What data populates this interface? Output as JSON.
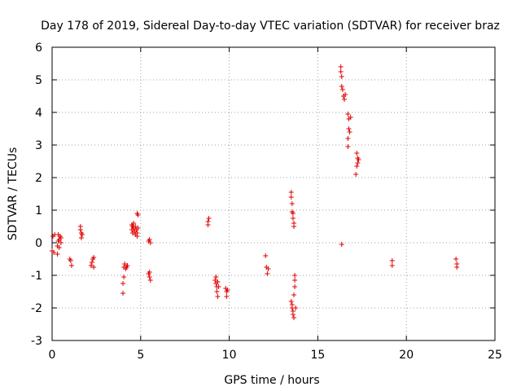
{
  "chart_data": {
    "type": "scatter",
    "title": "Day 178 of 2019, Sidereal Day-to-day VTEC variation (SDTVAR) for receiver braz",
    "xlabel": "GPS time / hours",
    "ylabel": "SDTVAR / TECUs",
    "xlim": [
      0,
      25
    ],
    "ylim": [
      -3,
      6
    ],
    "xticks": [
      "0",
      "5",
      "10",
      "15",
      "20",
      "25"
    ],
    "yticks": [
      "-3",
      "-2",
      "-1",
      "0",
      "1",
      "2",
      "3",
      "4",
      "5",
      "6"
    ],
    "grid": true,
    "marker": "+",
    "color": "#e00000",
    "series": [
      {
        "name": "braz",
        "points": [
          [
            0.0,
            -0.25
          ],
          [
            0.05,
            0.2
          ],
          [
            0.1,
            -0.3
          ],
          [
            0.15,
            0.25
          ],
          [
            0.3,
            -0.35
          ],
          [
            0.3,
            -0.1
          ],
          [
            0.35,
            0.05
          ],
          [
            0.35,
            0.25
          ],
          [
            0.4,
            0.1
          ],
          [
            0.4,
            -0.15
          ],
          [
            0.45,
            0.2
          ],
          [
            0.5,
            0.15
          ],
          [
            0.5,
            0.0
          ],
          [
            1.0,
            -0.5
          ],
          [
            1.05,
            -0.55
          ],
          [
            1.1,
            -0.7
          ],
          [
            1.6,
            0.5
          ],
          [
            1.6,
            0.4
          ],
          [
            1.65,
            0.3
          ],
          [
            1.65,
            0.15
          ],
          [
            1.7,
            0.25
          ],
          [
            2.2,
            -0.7
          ],
          [
            2.25,
            -0.6
          ],
          [
            2.3,
            -0.5
          ],
          [
            2.35,
            -0.45
          ],
          [
            2.35,
            -0.75
          ],
          [
            4.0,
            -1.55
          ],
          [
            4.0,
            -1.25
          ],
          [
            4.05,
            -1.05
          ],
          [
            4.05,
            -0.75
          ],
          [
            4.1,
            -0.65
          ],
          [
            4.15,
            -0.8
          ],
          [
            4.2,
            -0.75
          ],
          [
            4.25,
            -0.7
          ],
          [
            4.5,
            0.55
          ],
          [
            4.5,
            0.4
          ],
          [
            4.55,
            0.5
          ],
          [
            4.55,
            0.3
          ],
          [
            4.6,
            0.45
          ],
          [
            4.6,
            0.6
          ],
          [
            4.65,
            0.35
          ],
          [
            4.7,
            0.5
          ],
          [
            4.7,
            0.25
          ],
          [
            4.75,
            0.4
          ],
          [
            4.8,
            0.3
          ],
          [
            4.8,
            0.2
          ],
          [
            4.8,
            0.9
          ],
          [
            4.85,
            0.85
          ],
          [
            4.85,
            0.45
          ],
          [
            5.45,
            0.05
          ],
          [
            5.5,
            0.1
          ],
          [
            5.55,
            0.0
          ],
          [
            5.45,
            -0.95
          ],
          [
            5.5,
            -1.05
          ],
          [
            5.5,
            -0.9
          ],
          [
            5.55,
            -1.15
          ],
          [
            8.8,
            0.55
          ],
          [
            8.8,
            0.65
          ],
          [
            8.85,
            0.75
          ],
          [
            9.2,
            -1.15
          ],
          [
            9.25,
            -1.05
          ],
          [
            9.25,
            -1.25
          ],
          [
            9.3,
            -1.35
          ],
          [
            9.3,
            -1.5
          ],
          [
            9.35,
            -1.2
          ],
          [
            9.35,
            -1.65
          ],
          [
            9.4,
            -1.35
          ],
          [
            9.8,
            -1.4
          ],
          [
            9.85,
            -1.5
          ],
          [
            9.85,
            -1.65
          ],
          [
            9.9,
            -1.45
          ],
          [
            12.05,
            -0.4
          ],
          [
            12.1,
            -0.75
          ],
          [
            12.15,
            -0.95
          ],
          [
            12.2,
            -0.8
          ],
          [
            13.5,
            1.55
          ],
          [
            13.5,
            1.4
          ],
          [
            13.55,
            1.2
          ],
          [
            13.55,
            0.95
          ],
          [
            13.6,
            0.9
          ],
          [
            13.6,
            0.75
          ],
          [
            13.65,
            0.6
          ],
          [
            13.65,
            0.5
          ],
          [
            13.5,
            -1.8
          ],
          [
            13.55,
            -1.9
          ],
          [
            13.55,
            -2.0
          ],
          [
            13.6,
            -2.1
          ],
          [
            13.6,
            -2.2
          ],
          [
            13.65,
            -2.3
          ],
          [
            13.65,
            -1.6
          ],
          [
            13.7,
            -1.35
          ],
          [
            13.7,
            -1.15
          ],
          [
            13.7,
            -1.0
          ],
          [
            13.75,
            -2.0
          ],
          [
            16.3,
            5.4
          ],
          [
            16.3,
            5.25
          ],
          [
            16.35,
            5.1
          ],
          [
            16.35,
            4.8
          ],
          [
            16.4,
            4.7
          ],
          [
            16.45,
            4.5
          ],
          [
            16.5,
            4.4
          ],
          [
            16.55,
            4.55
          ],
          [
            16.35,
            -0.05
          ],
          [
            16.7,
            3.95
          ],
          [
            16.75,
            3.8
          ],
          [
            16.75,
            3.5
          ],
          [
            16.8,
            3.4
          ],
          [
            16.7,
            3.2
          ],
          [
            16.7,
            2.95
          ],
          [
            16.85,
            3.85
          ],
          [
            17.2,
            2.75
          ],
          [
            17.25,
            2.6
          ],
          [
            17.25,
            2.45
          ],
          [
            17.3,
            2.55
          ],
          [
            17.2,
            2.35
          ],
          [
            17.15,
            2.1
          ],
          [
            19.2,
            -0.55
          ],
          [
            19.2,
            -0.7
          ],
          [
            22.8,
            -0.5
          ],
          [
            22.85,
            -0.65
          ],
          [
            22.85,
            -0.75
          ]
        ]
      }
    ]
  }
}
